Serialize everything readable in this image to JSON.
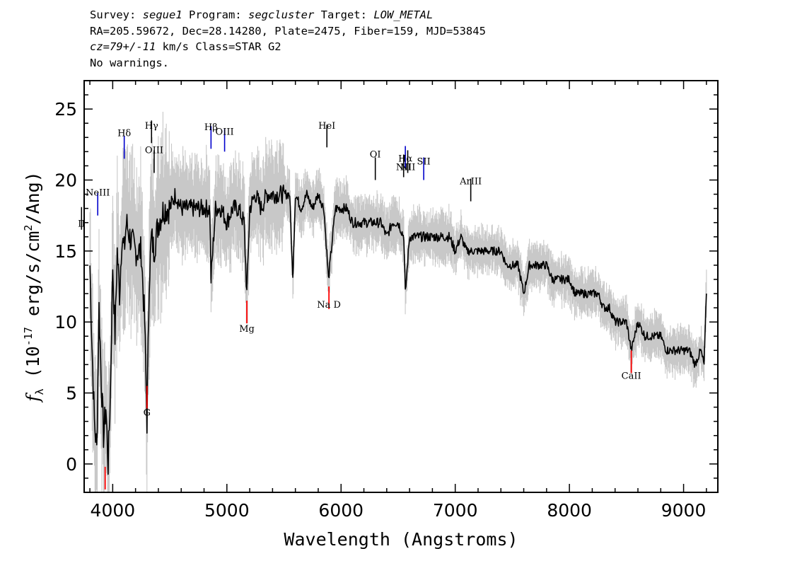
{
  "header": {
    "line1": {
      "survey_label": "Survey: ",
      "survey_value": "segue1",
      "program_label": " Program: ",
      "program_value": "segcluster",
      "target_label": " Target: ",
      "target_value": "LOW_METAL"
    },
    "line2": "RA=205.59672, Dec=28.14280, Plate=2475, Fiber=159, MJD=53845",
    "line3": {
      "cz_value": "cz=79+/-11",
      "cz_rest": " km/s Class=STAR G2"
    },
    "line4": "No warnings."
  },
  "colors": {
    "flux": "#000000",
    "error_band": "#c8c8c8",
    "emission_line": "#0000cc",
    "emission_line_dark": "#000000",
    "absorption_line": "#ff0000"
  },
  "chart_data": {
    "type": "line",
    "xlabel": "Wavelength (Angstroms)",
    "ylabel": "f_λ (10^-17 erg/s/cm^2/Ang)",
    "xlim": [
      3750,
      9300
    ],
    "ylim": [
      -2,
      27
    ],
    "x_ticks": [
      4000,
      5000,
      6000,
      7000,
      8000,
      9000
    ],
    "y_ticks": [
      0,
      5,
      10,
      15,
      20,
      25
    ],
    "x_minor_step": 200,
    "y_minor_step": 1,
    "series": [
      {
        "x": [
          3800,
          3820,
          3840,
          3860,
          3880,
          3900,
          3920,
          3940,
          3960,
          3980,
          4000,
          4020,
          4040,
          4060,
          4080,
          4100,
          4120,
          4150,
          4200,
          4250,
          4280,
          4300,
          4320,
          4340,
          4360,
          4400,
          4450,
          4500,
          4550,
          4600,
          4650,
          4700,
          4750,
          4800,
          4850,
          4861,
          4900,
          4950,
          5000,
          5050,
          5100,
          5150,
          5175,
          5200,
          5250,
          5300,
          5350,
          5400,
          5450,
          5500,
          5550,
          5577,
          5600,
          5650,
          5700,
          5750,
          5800,
          5850,
          5890,
          5950,
          6000,
          6050,
          6100,
          6150,
          6200,
          6250,
          6300,
          6350,
          6400,
          6450,
          6500,
          6550,
          6563,
          6600,
          6650,
          6700,
          6750,
          6800,
          6850,
          6900,
          6950,
          7000,
          7050,
          7100,
          7150,
          7200,
          7250,
          7300,
          7350,
          7400,
          7450,
          7500,
          7550,
          7600,
          7650,
          7700,
          7750,
          7800,
          7850,
          7900,
          7950,
          8000,
          8050,
          8100,
          8150,
          8200,
          8250,
          8300,
          8350,
          8400,
          8450,
          8500,
          8542,
          8600,
          8662,
          8700,
          8750,
          8800,
          8850,
          8900,
          8950,
          9000,
          9050,
          9100,
          9150,
          9180,
          9200
        ],
        "y": [
          14,
          8,
          3,
          1,
          11,
          6,
          2,
          4,
          0,
          5,
          14,
          9,
          15,
          12,
          16,
          15,
          17,
          16,
          15,
          15,
          10,
          3,
          13,
          16,
          15,
          17,
          18,
          18,
          19,
          18,
          18,
          18,
          18,
          18,
          18,
          13,
          18,
          18,
          17,
          18,
          18,
          17,
          12,
          18,
          19,
          18,
          19,
          19,
          19,
          19,
          19,
          13,
          19,
          18,
          19,
          18,
          19,
          18,
          13,
          18,
          18,
          18,
          17,
          17,
          17,
          17,
          17,
          17,
          16,
          17,
          17,
          16,
          12,
          16,
          16,
          16,
          16,
          16,
          16,
          16,
          16,
          15,
          16,
          15,
          15,
          15,
          15,
          15,
          15,
          15,
          14,
          14,
          14,
          12,
          14,
          14,
          14,
          14,
          13,
          13,
          13,
          13,
          12,
          12,
          12,
          12,
          12,
          11,
          11,
          10,
          10,
          10,
          8,
          10,
          9,
          9,
          9,
          9,
          8,
          8,
          8,
          8,
          8,
          7,
          8,
          7,
          12
        ]
      }
    ],
    "line_labels": [
      {
        "name": "II",
        "x": 3727,
        "y": 16.5,
        "label_y": 16.7,
        "color": "#000000"
      },
      {
        "name": "NeIII",
        "x": 3869,
        "y": 17.5,
        "label_y": 18.9,
        "color": "#0000cc"
      },
      {
        "name": "Hδ",
        "x": 4101,
        "y": 21.5,
        "label_y": 23.1,
        "color": "#0000cc"
      },
      {
        "name": "Hγ",
        "x": 4340,
        "y": 22.6,
        "label_y": 23.6,
        "color": "#000000"
      },
      {
        "name": "OIII",
        "x": 4363,
        "y": 20.5,
        "label_y": 21.9,
        "color": "#000000"
      },
      {
        "name": "Hβ",
        "x": 4861,
        "y": 22.2,
        "label_y": 23.5,
        "color": "#0000cc"
      },
      {
        "name": "OIII",
        "x": 4980,
        "y": 22.0,
        "label_y": 23.2,
        "color": "#0000cc"
      },
      {
        "name": "HeI",
        "x": 5876,
        "y": 22.3,
        "label_y": 23.6,
        "color": "#000000"
      },
      {
        "name": "OI",
        "x": 6300,
        "y": 20.0,
        "label_y": 21.6,
        "color": "#000000"
      },
      {
        "name": "NII",
        "x": 6548,
        "y": 20.2,
        "label_y": 20.7,
        "color": "#000000"
      },
      {
        "name": "Hα",
        "x": 6563,
        "y": 20.8,
        "label_y": 21.3,
        "color": "#0000cc"
      },
      {
        "name": "NII",
        "x": 6584,
        "y": 20.5,
        "label_y": 20.7,
        "color": "#000000"
      },
      {
        "name": "SII",
        "x": 6724,
        "y": 20.0,
        "label_y": 21.1,
        "color": "#0000cc"
      },
      {
        "name": "ArIII",
        "x": 7136,
        "y": 18.5,
        "label_y": 19.7,
        "color": "#000000"
      },
      {
        "name": "G",
        "x": 4300,
        "y": 5.5,
        "label_y": 3.4,
        "color": "#ff0000"
      },
      {
        "name": "Mg",
        "x": 5175,
        "y": 11.5,
        "label_y": 9.3,
        "color": "#ff0000"
      },
      {
        "name": "Na D",
        "x": 5894,
        "y": 12.5,
        "label_y": 11.0,
        "color": "#ff0000"
      },
      {
        "name": "CaII",
        "x": 8542,
        "y": 8.0,
        "label_y": 6.0,
        "color": "#ff0000"
      },
      {
        "name": "",
        "x": 3934,
        "y": -0.2,
        "label_y": -0.2,
        "color": "#ff0000"
      }
    ]
  }
}
